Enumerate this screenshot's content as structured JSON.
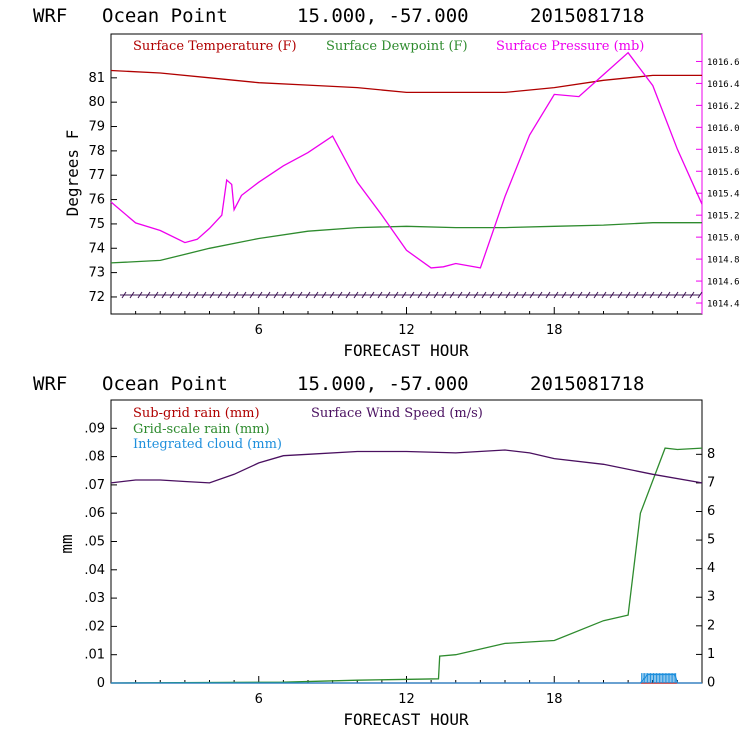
{
  "chart_data": [
    {
      "type": "line",
      "header": {
        "model": "WRF",
        "location": "Ocean Point",
        "coords": "15.000, -57.000",
        "init": "2015081718"
      },
      "xlabel": "FORECAST HOUR",
      "ylabel": "Degrees F",
      "xlim": [
        0,
        24
      ],
      "ylim": [
        71.3,
        82.8
      ],
      "y2lim": [
        1014.3,
        1016.85
      ],
      "xticks": [
        "6",
        "12",
        "18"
      ],
      "yticks": [
        "72",
        "73",
        "74",
        "75",
        "76",
        "77",
        "78",
        "79",
        "80",
        "81"
      ],
      "y2ticks": [
        "1014.4",
        "1014.6",
        "1014.8",
        "1015.0",
        "1015.2",
        "1015.4",
        "1015.6",
        "1015.8",
        "1016.0",
        "1016.2",
        "1016.4",
        "1016.6"
      ],
      "colors": {
        "temp": "#b00000",
        "dew": "#2e8b2e",
        "pres": "#ee00ee",
        "wind": "#5a1a70"
      },
      "series": [
        {
          "name": "Surface Temperature (F)",
          "axis": "left",
          "x": [
            0,
            2,
            4,
            6,
            8,
            10,
            12,
            14,
            16,
            18,
            20,
            22,
            24
          ],
          "y": [
            81.3,
            81.2,
            81.0,
            80.8,
            80.7,
            80.6,
            80.4,
            80.4,
            80.4,
            80.6,
            80.9,
            81.1,
            81.1
          ]
        },
        {
          "name": "Surface Dewpoint (F)",
          "axis": "left",
          "x": [
            0,
            2,
            4,
            6,
            8,
            10,
            12,
            14,
            16,
            18,
            20,
            22,
            24
          ],
          "y": [
            73.4,
            73.5,
            74.0,
            74.4,
            74.7,
            74.85,
            74.9,
            74.85,
            74.85,
            74.9,
            74.95,
            75.05,
            75.05
          ]
        },
        {
          "name": "Surface Pressure (mb)",
          "axis": "right",
          "x": [
            0,
            1,
            2,
            3,
            3.5,
            4,
            4.5,
            4.7,
            4.9,
            5,
            5.3,
            6,
            7,
            8,
            9,
            10,
            11,
            12,
            13,
            13.5,
            14,
            15,
            16,
            17,
            18,
            19,
            20,
            21,
            21.5,
            22,
            23,
            24
          ],
          "y": [
            1015.32,
            1015.13,
            1015.06,
            1014.95,
            1014.98,
            1015.08,
            1015.2,
            1015.52,
            1015.48,
            1015.25,
            1015.38,
            1015.5,
            1015.65,
            1015.77,
            1015.92,
            1015.5,
            1015.2,
            1014.88,
            1014.72,
            1014.73,
            1014.76,
            1014.72,
            1015.37,
            1015.93,
            1016.3,
            1016.28,
            1016.48,
            1016.68,
            1016.53,
            1016.38,
            1015.8,
            1015.3
          ]
        }
      ]
    },
    {
      "type": "line",
      "header": {
        "model": "WRF",
        "location": "Ocean Point",
        "coords": "15.000, -57.000",
        "init": "2015081718"
      },
      "xlabel": "FORECAST HOUR",
      "ylabel": "mm",
      "xlim": [
        0,
        24
      ],
      "ylim": [
        0,
        0.1
      ],
      "y2lim": [
        0,
        9.9
      ],
      "xticks": [
        "6",
        "12",
        "18"
      ],
      "yticks": [
        "0",
        ".01",
        ".02",
        ".03",
        ".04",
        ".05",
        ".06",
        ".07",
        ".08",
        ".09"
      ],
      "y2ticks": [
        "0",
        "1",
        "2",
        "3",
        "4",
        "5",
        "6",
        "7",
        "8"
      ],
      "colors": {
        "subgrid": "#b00000",
        "gridscale": "#2e8b2e",
        "cloud": "#1e8fdc",
        "wind": "#4a1060"
      },
      "series": [
        {
          "name": "Sub-grid rain (mm)",
          "axis": "left",
          "x": [
            0,
            24
          ],
          "y": [
            0,
            0
          ]
        },
        {
          "name": "Grid-scale rain (mm)",
          "axis": "left",
          "x": [
            0,
            7,
            10,
            13.3,
            13.35,
            14,
            16,
            18,
            20,
            21,
            21.5,
            22.5,
            23,
            24
          ],
          "y": [
            0,
            0.0003,
            0.001,
            0.0015,
            0.0095,
            0.01,
            0.014,
            0.015,
            0.022,
            0.024,
            0.06,
            0.083,
            0.0825,
            0.083
          ]
        },
        {
          "name": "Integrated cloud (mm)",
          "axis": "left",
          "x": [
            0,
            21.5,
            21.8,
            22.2,
            22.6,
            22.9,
            23,
            24
          ],
          "y": [
            0,
            0,
            0.003,
            0.003,
            0.003,
            0.003,
            0,
            0
          ]
        },
        {
          "name": "Surface Wind Speed (m/s)",
          "axis": "right",
          "x": [
            0,
            1,
            2,
            3,
            4,
            5,
            6,
            7,
            8,
            10,
            12,
            14,
            16,
            17,
            18,
            20,
            22,
            24
          ],
          "y": [
            7.0,
            7.1,
            7.1,
            7.05,
            7.0,
            7.3,
            7.7,
            7.95,
            8.0,
            8.1,
            8.1,
            8.05,
            8.15,
            8.05,
            7.85,
            7.65,
            7.3,
            7.0
          ]
        }
      ]
    }
  ]
}
